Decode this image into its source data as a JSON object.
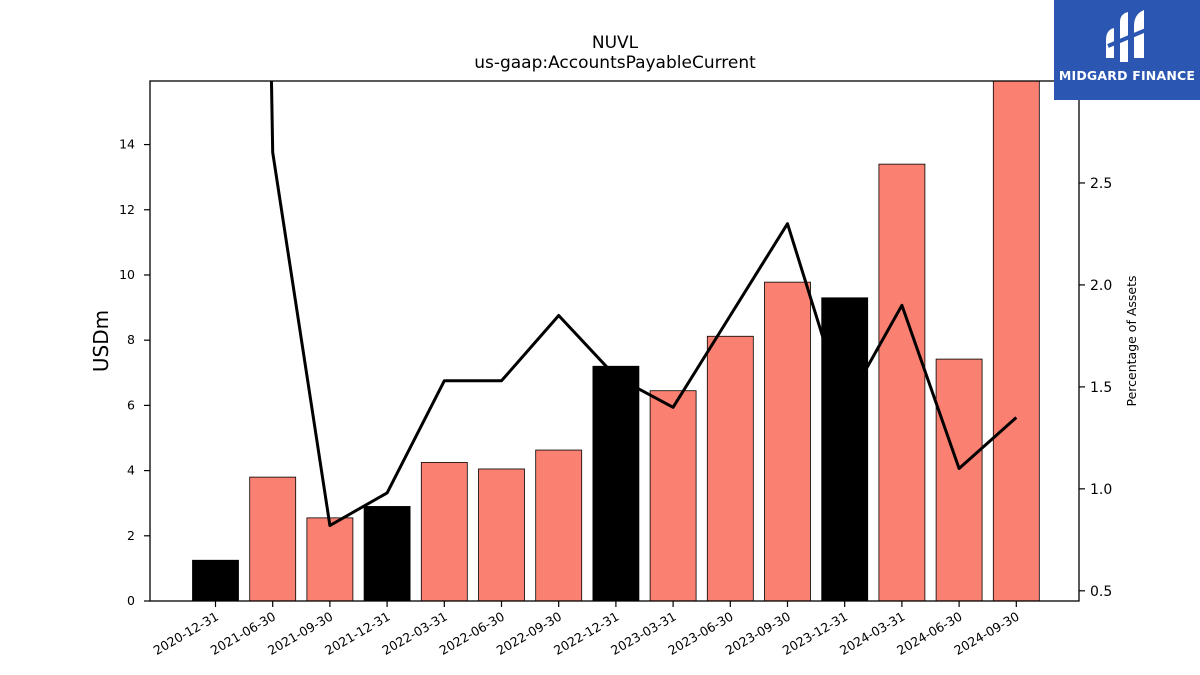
{
  "chart_data": {
    "type": "bar",
    "title": "NUVL",
    "subtitle": "us-gaap:AccountsPayableCurrent",
    "ylabel": "USDm",
    "y2label": "Percentage of Assets",
    "categories": [
      "2020-12-31",
      "2021-06-30",
      "2021-09-30",
      "2021-12-31",
      "2022-03-31",
      "2022-06-30",
      "2022-09-30",
      "2022-12-31",
      "2023-03-31",
      "2023-06-30",
      "2023-09-30",
      "2023-12-31",
      "2024-03-31",
      "2024-06-30",
      "2024-09-30"
    ],
    "series": [
      {
        "type": "bar",
        "axis": "left",
        "values": [
          1.25,
          3.8,
          2.55,
          2.9,
          4.25,
          4.05,
          4.63,
          7.2,
          6.45,
          8.12,
          9.78,
          9.3,
          13.4,
          7.42,
          15.95
        ],
        "colors": [
          "#000000",
          "#fa8072",
          "#fa8072",
          "#000000",
          "#fa8072",
          "#fa8072",
          "#fa8072",
          "#000000",
          "#fa8072",
          "#fa8072",
          "#fa8072",
          "#000000",
          "#fa8072",
          "#fa8072",
          "#fa8072"
        ]
      },
      {
        "type": "line",
        "axis": "right",
        "color": "#000000",
        "values": [
          null,
          2.65,
          0.82,
          0.98,
          1.53,
          1.53,
          1.85,
          1.55,
          1.4,
          1.85,
          2.3,
          1.4,
          1.9,
          1.1,
          1.35
        ],
        "clipped_start": {
          "category": "2021-06-30",
          "value": 3.5
        }
      }
    ],
    "ylim": [
      0,
      15.95
    ],
    "y2lim": [
      0.45,
      3.0
    ],
    "yticks": [
      0,
      2,
      4,
      6,
      8,
      10,
      12,
      14
    ],
    "y2ticks": [
      0.5,
      1.0,
      1.5,
      2.0,
      2.5
    ],
    "y2tick_labels": [
      "0.5",
      "1.0",
      "1.5",
      "2.0",
      "2.5"
    ],
    "grid": false,
    "legend": "none"
  },
  "logo": {
    "text": "MIDGARD FINANCE",
    "background": "#2b57b3"
  }
}
